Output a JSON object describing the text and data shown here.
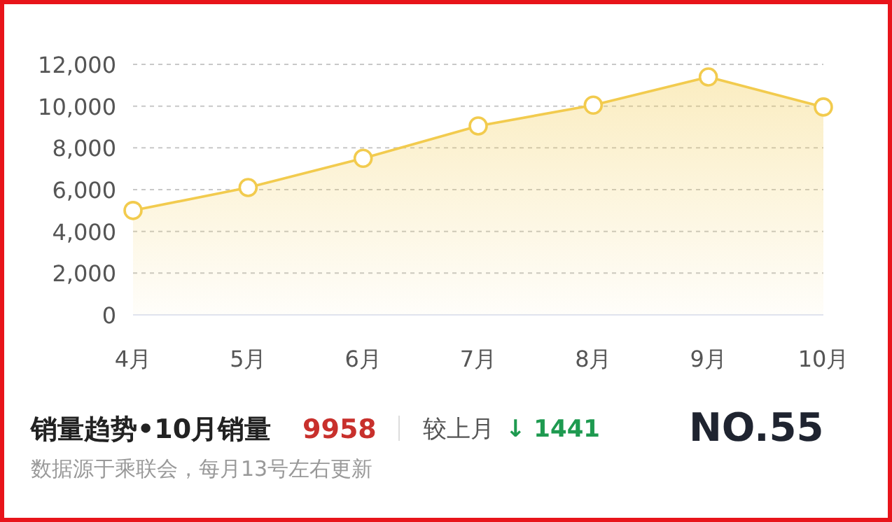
{
  "chart_data": {
    "type": "area",
    "categories": [
      "4月",
      "5月",
      "6月",
      "7月",
      "8月",
      "9月",
      "10月"
    ],
    "values": [
      5000,
      6100,
      7500,
      9050,
      10050,
      11399,
      9958
    ],
    "color": "#f2cb4e",
    "ylim": [
      0,
      12000
    ],
    "yticks": [
      0,
      {
        "value": 2000,
        "label": "2,000"
      },
      {
        "value": 4000,
        "label": "4,000"
      },
      {
        "value": 6000,
        "label": "6,000"
      },
      {
        "value": 8000,
        "label": "8,000"
      },
      {
        "value": 10000,
        "label": "10,000"
      },
      {
        "value": 12000,
        "label": "12,000"
      }
    ],
    "grid": "y",
    "marker": "circle",
    "annotations": [
      "销量趋势•10月销量",
      "9958",
      "较上月",
      "↓ 1441",
      "NO.55",
      "数据源于乘联会，每月13号左右更新"
    ]
  }
}
